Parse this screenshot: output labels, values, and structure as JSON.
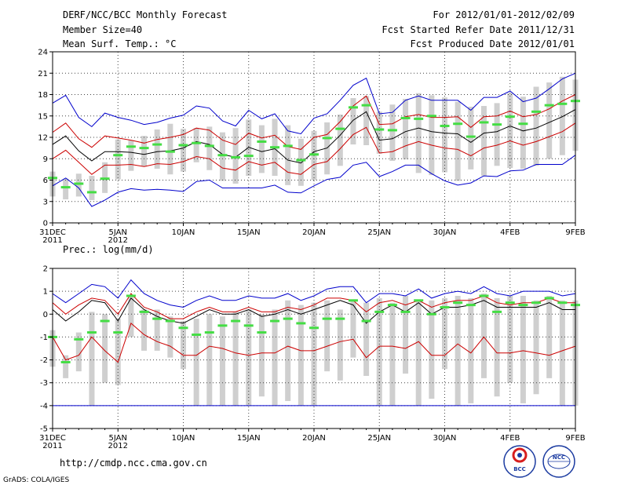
{
  "header": {
    "title_left": "DERF/NCC/BCC Monthly Forecast",
    "member_size": "Member Size=40",
    "variable_top": "Mean Surf. Temp.: °C",
    "period": "For 2012/01/01-2012/02/09",
    "refer_date": "Fcst Started Refer Date 2011/12/31",
    "produced_date": "Fcst Produced Date 2012/01/01"
  },
  "footer": {
    "url": "http://cmdp.ncc.cma.gov.cn",
    "credit": "GrADS: COLA/IGES",
    "logo_left_text": "BCC",
    "logo_right_text": "NCC"
  },
  "colors": {
    "max_line": "#0000cc",
    "pct_line": "#cc0000",
    "mean_line": "#000000",
    "box": "#cfcfcf",
    "median": "#44dd44",
    "grid": "#444444"
  },
  "chart_data": [
    {
      "id": "temperature",
      "type": "box-and-line",
      "ylabel": "Mean Surf. Temp.: °C",
      "ylim": [
        0,
        24
      ],
      "yticks": [
        0,
        3,
        6,
        9,
        12,
        15,
        18,
        21,
        24
      ],
      "xticks": [
        {
          "day": 0,
          "label": "31DEC",
          "sub": "2011"
        },
        {
          "day": 5,
          "label": "5JAN",
          "sub": "2012"
        },
        {
          "day": 10,
          "label": "10JAN",
          "sub": ""
        },
        {
          "day": 15,
          "label": "15JAN",
          "sub": ""
        },
        {
          "day": 20,
          "label": "20JAN",
          "sub": ""
        },
        {
          "day": 25,
          "label": "25JAN",
          "sub": ""
        },
        {
          "day": 30,
          "label": "30JAN",
          "sub": ""
        },
        {
          "day": 35,
          "label": "4FEB",
          "sub": ""
        },
        {
          "day": 40,
          "label": "9FEB",
          "sub": ""
        }
      ],
      "series": [
        {
          "name": "max",
          "values": [
            16.8,
            17.9,
            14.8,
            13.5,
            15.4,
            14.8,
            14.4,
            13.8,
            14.1,
            14.7,
            15.1,
            16.4,
            16.1,
            14.3,
            13.6,
            15.8,
            14.6,
            15.3,
            12.9,
            12.5,
            14.7,
            15.3,
            17.2,
            19.3,
            20.3,
            15.3,
            15.5,
            17.2,
            17.8,
            17.2,
            17.2,
            17.2,
            15.8,
            17.6,
            17.6,
            18.5,
            17.0,
            17.5,
            18.8,
            20.2,
            21.0
          ]
        },
        {
          "name": "p90",
          "values": [
            12.7,
            14.0,
            11.8,
            10.6,
            12.2,
            11.9,
            11.6,
            11.2,
            11.7,
            12.0,
            12.4,
            13.3,
            13.0,
            11.6,
            11.0,
            12.6,
            11.9,
            12.3,
            10.7,
            10.3,
            12.0,
            12.4,
            14.2,
            16.4,
            17.8,
            13.8,
            13.9,
            14.9,
            15.2,
            14.8,
            14.8,
            14.9,
            13.4,
            14.9,
            15.0,
            15.7,
            14.9,
            15.2,
            16.0,
            17.1,
            18.0
          ]
        },
        {
          "name": "mean",
          "values": [
            11.0,
            12.2,
            10.1,
            8.7,
            10.0,
            10.0,
            9.9,
            9.6,
            10.0,
            10.1,
            10.5,
            11.4,
            11.0,
            9.6,
            9.2,
            10.6,
            10.0,
            10.4,
            8.8,
            8.4,
            10.0,
            10.5,
            12.3,
            14.4,
            15.6,
            11.6,
            11.8,
            12.8,
            13.3,
            12.8,
            12.6,
            12.5,
            11.3,
            12.6,
            12.8,
            13.6,
            12.9,
            13.3,
            14.1,
            14.9,
            15.9
          ]
        },
        {
          "name": "p10",
          "values": [
            9.0,
            10.2,
            8.5,
            6.8,
            8.1,
            8.1,
            8.2,
            7.9,
            8.3,
            8.2,
            8.6,
            9.3,
            9.0,
            7.7,
            7.4,
            8.6,
            8.1,
            8.5,
            7.1,
            6.8,
            8.2,
            8.6,
            10.4,
            12.4,
            13.4,
            9.8,
            10.0,
            10.8,
            11.4,
            10.9,
            10.5,
            10.3,
            9.4,
            10.5,
            10.9,
            11.5,
            10.9,
            11.4,
            12.1,
            12.8,
            14.0
          ]
        },
        {
          "name": "min",
          "values": [
            5.2,
            6.3,
            4.9,
            2.3,
            3.2,
            4.3,
            4.8,
            4.6,
            4.7,
            4.6,
            4.4,
            5.8,
            6.0,
            4.9,
            4.9,
            4.9,
            4.9,
            5.3,
            4.3,
            4.2,
            5.2,
            6.1,
            6.4,
            8.1,
            8.5,
            6.5,
            7.2,
            8.1,
            8.1,
            6.9,
            5.9,
            5.3,
            5.6,
            6.6,
            6.5,
            7.3,
            7.4,
            8.2,
            8.2,
            8.2,
            9.5
          ]
        }
      ],
      "boxes": [
        {
          "lo": 3.7,
          "hi": 7.2,
          "med": 6.3
        },
        {
          "lo": 3.3,
          "hi": 6.2,
          "med": 5.0
        },
        {
          "lo": 3.7,
          "hi": 6.9,
          "med": 5.5
        },
        {
          "lo": 3.2,
          "hi": 6.6,
          "med": 4.3
        },
        {
          "lo": 4.2,
          "hi": 8.5,
          "med": 6.2
        },
        {
          "lo": 6.1,
          "hi": 11.7,
          "med": 9.5
        },
        {
          "lo": 7.3,
          "hi": 11.6,
          "med": 10.7
        },
        {
          "lo": 7.9,
          "hi": 12.2,
          "med": 10.5
        },
        {
          "lo": 7.6,
          "hi": 13.1,
          "med": 11.0
        },
        {
          "lo": 6.8,
          "hi": 13.9,
          "med": 10.0
        },
        {
          "lo": 7.2,
          "hi": 13.2,
          "med": 10.9
        },
        {
          "lo": 8.5,
          "hi": 13.3,
          "med": 11.2
        },
        {
          "lo": 7.4,
          "hi": 13.5,
          "med": 10.8
        },
        {
          "lo": 5.9,
          "hi": 12.7,
          "med": 9.5
        },
        {
          "lo": 5.5,
          "hi": 13.3,
          "med": 9.2
        },
        {
          "lo": 6.6,
          "hi": 14.5,
          "med": 9.4
        },
        {
          "lo": 7.0,
          "hi": 13.7,
          "med": 11.4
        },
        {
          "lo": 6.6,
          "hi": 14.6,
          "med": 10.6
        },
        {
          "lo": 5.3,
          "hi": 13.7,
          "med": 10.8
        },
        {
          "lo": 5.2,
          "hi": 11.8,
          "med": 8.8
        },
        {
          "lo": 6.0,
          "hi": 12.9,
          "med": 9.6
        },
        {
          "lo": 6.8,
          "hi": 14.1,
          "med": 11.9
        },
        {
          "lo": 8.0,
          "hi": 15.2,
          "med": 13.2
        },
        {
          "lo": 11.0,
          "hi": 17.5,
          "med": 16.2
        },
        {
          "lo": 10.9,
          "hi": 17.8,
          "med": 16.5
        },
        {
          "lo": 9.7,
          "hi": 15.6,
          "med": 13.1
        },
        {
          "lo": 8.7,
          "hi": 16.6,
          "med": 13.0
        },
        {
          "lo": 8.9,
          "hi": 17.4,
          "med": 14.7
        },
        {
          "lo": 7.0,
          "hi": 18.2,
          "med": 14.6
        },
        {
          "lo": 6.7,
          "hi": 17.9,
          "med": 15.0
        },
        {
          "lo": 7.1,
          "hi": 17.6,
          "med": 13.6
        },
        {
          "lo": 5.9,
          "hi": 17.0,
          "med": 13.9
        },
        {
          "lo": 7.5,
          "hi": 16.3,
          "med": 12.1
        },
        {
          "lo": 6.6,
          "hi": 16.4,
          "med": 14.1
        },
        {
          "lo": 8.0,
          "hi": 16.8,
          "med": 13.8
        },
        {
          "lo": 7.7,
          "hi": 18.2,
          "med": 14.9
        },
        {
          "lo": 7.6,
          "hi": 17.7,
          "med": 13.9
        },
        {
          "lo": 8.0,
          "hi": 19.1,
          "med": 15.6
        },
        {
          "lo": 9.0,
          "hi": 19.7,
          "med": 16.5
        },
        {
          "lo": 9.5,
          "hi": 20.5,
          "med": 16.7
        },
        {
          "lo": 10.1,
          "hi": 20.1,
          "med": 17.1
        }
      ]
    },
    {
      "id": "precipitation",
      "type": "box-and-line",
      "ylabel": "Prec.: log(mm/d)",
      "ylim": [
        -5,
        2
      ],
      "yticks": [
        -5,
        -4,
        -3,
        -2,
        -1,
        0,
        1,
        2
      ],
      "xticks": [
        {
          "day": 0,
          "label": "31DEC",
          "sub": "2011"
        },
        {
          "day": 5,
          "label": "5JAN",
          "sub": "2012"
        },
        {
          "day": 10,
          "label": "10JAN",
          "sub": ""
        },
        {
          "day": 15,
          "label": "15JAN",
          "sub": ""
        },
        {
          "day": 20,
          "label": "20JAN",
          "sub": ""
        },
        {
          "day": 25,
          "label": "25JAN",
          "sub": ""
        },
        {
          "day": 30,
          "label": "30JAN",
          "sub": ""
        },
        {
          "day": 35,
          "label": "4FEB",
          "sub": ""
        },
        {
          "day": 40,
          "label": "9FEB",
          "sub": ""
        }
      ],
      "series": [
        {
          "name": "max",
          "values": [
            0.9,
            0.5,
            0.9,
            1.3,
            1.2,
            0.7,
            1.5,
            0.9,
            0.6,
            0.4,
            0.3,
            0.6,
            0.8,
            0.6,
            0.6,
            0.8,
            0.7,
            0.7,
            0.9,
            0.6,
            0.8,
            1.1,
            1.2,
            1.2,
            0.5,
            0.9,
            0.9,
            0.8,
            1.1,
            0.7,
            0.9,
            1.0,
            0.9,
            1.2,
            0.9,
            0.8,
            1.0,
            1.0,
            1.0,
            0.8,
            0.9
          ]
        },
        {
          "name": "p90",
          "values": [
            0.5,
            0.0,
            0.4,
            0.7,
            0.6,
            0.0,
            0.9,
            0.3,
            0.1,
            -0.2,
            -0.2,
            0.1,
            0.3,
            0.1,
            0.1,
            0.3,
            0.1,
            0.1,
            0.3,
            0.2,
            0.4,
            0.7,
            0.7,
            0.6,
            0.1,
            0.5,
            0.6,
            0.4,
            0.6,
            0.3,
            0.5,
            0.6,
            0.6,
            0.8,
            0.5,
            0.4,
            0.5,
            0.5,
            0.7,
            0.5,
            0.5
          ]
        },
        {
          "name": "mean",
          "values": [
            0.2,
            -0.3,
            0.1,
            0.6,
            0.5,
            -0.3,
            0.7,
            0.2,
            -0.1,
            -0.3,
            -0.4,
            -0.1,
            0.2,
            0.0,
            0.0,
            0.2,
            -0.1,
            0.0,
            0.2,
            0.0,
            0.2,
            0.4,
            0.6,
            0.4,
            -0.4,
            0.1,
            0.4,
            0.1,
            0.5,
            0.0,
            0.3,
            0.3,
            0.4,
            0.6,
            0.3,
            0.3,
            0.3,
            0.3,
            0.5,
            0.2,
            0.2
          ]
        },
        {
          "name": "p10",
          "values": [
            -1.0,
            -2.0,
            -1.8,
            -1.0,
            -1.6,
            -2.1,
            -0.4,
            -0.9,
            -1.2,
            -1.4,
            -1.8,
            -1.8,
            -1.4,
            -1.5,
            -1.7,
            -1.8,
            -1.7,
            -1.7,
            -1.4,
            -1.6,
            -1.6,
            -1.4,
            -1.2,
            -1.1,
            -1.9,
            -1.4,
            -1.4,
            -1.5,
            -1.2,
            -1.8,
            -1.8,
            -1.3,
            -1.7,
            -1.0,
            -1.7,
            -1.7,
            -1.6,
            -1.7,
            -1.8,
            -1.6,
            -1.4
          ]
        },
        {
          "name": "min",
          "values": [
            -4.0,
            -4.0,
            -4.0,
            -4.0,
            -4.0,
            -4.0,
            -4.0,
            -4.0,
            -4.0,
            -4.0,
            -4.0,
            -4.0,
            -4.0,
            -4.0,
            -4.0,
            -4.0,
            -4.0,
            -4.0,
            -4.0,
            -4.0,
            -4.0,
            -4.0,
            -4.0,
            -4.0,
            -4.0,
            -4.0,
            -4.0,
            -4.0,
            -4.0,
            -4.0,
            -4.0,
            -4.0,
            -4.0,
            -4.0,
            -4.0,
            -4.0,
            -4.0,
            -4.0,
            -4.0,
            -4.0,
            -4.0
          ]
        }
      ],
      "boxes": [
        {
          "lo": -2.3,
          "hi": -0.7,
          "med": -1.0
        },
        {
          "lo": -2.8,
          "hi": -1.8,
          "med": -2.1
        },
        {
          "lo": -2.5,
          "hi": -0.8,
          "med": -1.1
        },
        {
          "lo": -4.0,
          "hi": 0.1,
          "med": -0.8
        },
        {
          "lo": -3.0,
          "hi": 0.0,
          "med": -0.3
        },
        {
          "lo": -3.1,
          "hi": -0.2,
          "med": -0.8
        },
        {
          "lo": -1.0,
          "hi": 0.8,
          "med": 0.8
        },
        {
          "lo": -1.6,
          "hi": 0.2,
          "med": 0.1
        },
        {
          "lo": -1.6,
          "hi": 0.2,
          "med": -0.2
        },
        {
          "lo": -1.9,
          "hi": -0.1,
          "med": -0.3
        },
        {
          "lo": -2.4,
          "hi": -0.3,
          "med": -0.6
        },
        {
          "lo": -4.0,
          "hi": -0.2,
          "med": -0.9
        },
        {
          "lo": -4.0,
          "hi": 0.0,
          "med": -0.8
        },
        {
          "lo": -4.0,
          "hi": -0.1,
          "med": -0.5
        },
        {
          "lo": -4.0,
          "hi": 0.1,
          "med": -0.3
        },
        {
          "lo": -4.0,
          "hi": 0.2,
          "med": -0.5
        },
        {
          "lo": -3.6,
          "hi": 0.0,
          "med": -0.8
        },
        {
          "lo": -4.0,
          "hi": 0.2,
          "med": -0.3
        },
        {
          "lo": -3.8,
          "hi": 0.6,
          "med": -0.2
        },
        {
          "lo": -4.0,
          "hi": 0.4,
          "med": -0.4
        },
        {
          "lo": -4.0,
          "hi": 0.5,
          "med": -0.6
        },
        {
          "lo": -2.5,
          "hi": 0.6,
          "med": -0.2
        },
        {
          "lo": -2.9,
          "hi": 0.2,
          "med": -0.2
        },
        {
          "lo": -1.9,
          "hi": 0.6,
          "med": 0.6
        },
        {
          "lo": -2.7,
          "hi": 0.5,
          "med": -0.3
        },
        {
          "lo": -4.0,
          "hi": 0.7,
          "med": 0.1
        },
        {
          "lo": -4.0,
          "hi": 0.5,
          "med": 0.4
        },
        {
          "lo": -2.6,
          "hi": 0.8,
          "med": 0.1
        },
        {
          "lo": -4.0,
          "hi": 0.6,
          "med": 0.6
        },
        {
          "lo": -3.7,
          "hi": 0.6,
          "med": 0.0
        },
        {
          "lo": -2.4,
          "hi": 0.7,
          "med": 0.3
        },
        {
          "lo": -4.0,
          "hi": 0.8,
          "med": 0.5
        },
        {
          "lo": -3.9,
          "hi": 0.7,
          "med": 0.4
        },
        {
          "lo": -2.8,
          "hi": 0.9,
          "med": 0.8
        },
        {
          "lo": -3.6,
          "hi": 0.7,
          "med": 0.1
        },
        {
          "lo": -3.0,
          "hi": 0.8,
          "med": 0.5
        },
        {
          "lo": -3.9,
          "hi": 0.8,
          "med": 0.4
        },
        {
          "lo": -3.5,
          "hi": 0.6,
          "med": 0.5
        },
        {
          "lo": -2.8,
          "hi": 0.8,
          "med": 0.7
        },
        {
          "lo": -4.0,
          "hi": 0.6,
          "med": 0.5
        },
        {
          "lo": -4.0,
          "hi": 0.6,
          "med": 0.4
        }
      ]
    }
  ]
}
